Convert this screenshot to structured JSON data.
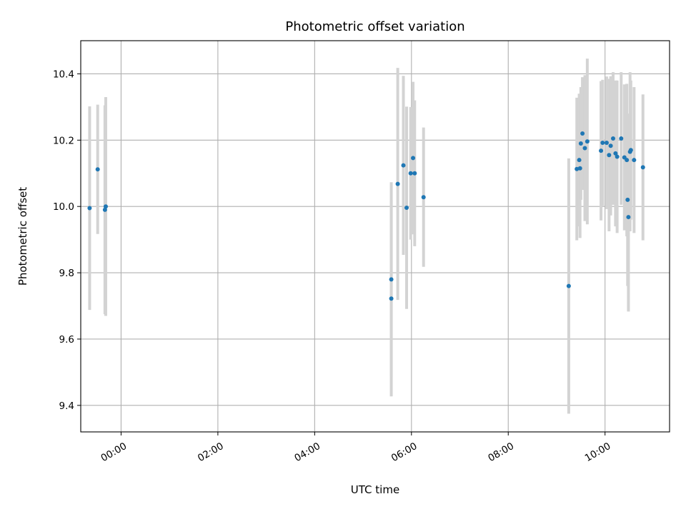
{
  "chart_data": {
    "type": "scatter",
    "title": "Photometric offset variation",
    "xlabel": "UTC time",
    "ylabel": "Photometric offset",
    "x_ticks": [
      "00:00",
      "02:00",
      "04:00",
      "06:00",
      "08:00",
      "10:00"
    ],
    "y_ticks": [
      "9.4",
      "9.6",
      "9.8",
      "10.0",
      "10.2",
      "10.4"
    ],
    "xlim": [
      "23:10",
      "11:20"
    ],
    "ylim": [
      9.32,
      10.5
    ],
    "grid": true,
    "legend": "none",
    "colors": {
      "point": "#1f77b4",
      "errorbar": "#d3d3d3",
      "grid": "#b0b0b0"
    },
    "series": [
      {
        "points": [
          {
            "x": "23:21",
            "y": 9.995,
            "err": 0.307
          },
          {
            "x": "23:31",
            "y": 10.112,
            "err": 0.195
          },
          {
            "x": "23:40",
            "y": 9.99,
            "err": 0.315
          },
          {
            "x": "23:41",
            "y": 10.0,
            "err": 0.33
          },
          {
            "x": "05:35",
            "y": 9.78,
            "err": 0.293
          },
          {
            "x": "05:35",
            "y": 9.722,
            "err": 0.295
          },
          {
            "x": "05:43",
            "y": 10.068,
            "err": 0.35
          },
          {
            "x": "05:50",
            "y": 10.124,
            "err": 0.27
          },
          {
            "x": "05:54",
            "y": 9.996,
            "err": 0.305
          },
          {
            "x": "05:59",
            "y": 10.1,
            "err": 0.2
          },
          {
            "x": "06:02",
            "y": 10.146,
            "err": 0.23
          },
          {
            "x": "06:04",
            "y": 10.1,
            "err": 0.22
          },
          {
            "x": "06:15",
            "y": 10.028,
            "err": 0.21
          },
          {
            "x": "09:15",
            "y": 9.76,
            "err": 0.385
          },
          {
            "x": "09:25",
            "y": 10.113,
            "err": 0.215
          },
          {
            "x": "09:28",
            "y": 10.14,
            "err": 0.2
          },
          {
            "x": "09:29",
            "y": 10.115,
            "err": 0.21
          },
          {
            "x": "09:30",
            "y": 10.19,
            "err": 0.17
          },
          {
            "x": "09:32",
            "y": 10.22,
            "err": 0.17
          },
          {
            "x": "09:35",
            "y": 10.176,
            "err": 0.22
          },
          {
            "x": "09:38",
            "y": 10.196,
            "err": 0.25
          },
          {
            "x": "09:55",
            "y": 10.168,
            "err": 0.21
          },
          {
            "x": "09:57",
            "y": 10.192,
            "err": 0.19
          },
          {
            "x": "10:02",
            "y": 10.192,
            "err": 0.2
          },
          {
            "x": "10:05",
            "y": 10.155,
            "err": 0.23
          },
          {
            "x": "10:07",
            "y": 10.183,
            "err": 0.21
          },
          {
            "x": "10:10",
            "y": 10.205,
            "err": 0.2
          },
          {
            "x": "10:13",
            "y": 10.16,
            "err": 0.22
          },
          {
            "x": "10:15",
            "y": 10.15,
            "err": 0.23
          },
          {
            "x": "10:20",
            "y": 10.205,
            "err": 0.2
          },
          {
            "x": "10:24",
            "y": 10.148,
            "err": 0.22
          },
          {
            "x": "10:27",
            "y": 10.14,
            "err": 0.23
          },
          {
            "x": "10:28",
            "y": 10.02,
            "err": 0.26
          },
          {
            "x": "10:29",
            "y": 9.968,
            "err": 0.285
          },
          {
            "x": "10:31",
            "y": 10.165,
            "err": 0.24
          },
          {
            "x": "10:32",
            "y": 10.17,
            "err": 0.21
          },
          {
            "x": "10:36",
            "y": 10.14,
            "err": 0.22
          },
          {
            "x": "10:47",
            "y": 10.118,
            "err": 0.22
          }
        ]
      }
    ]
  }
}
